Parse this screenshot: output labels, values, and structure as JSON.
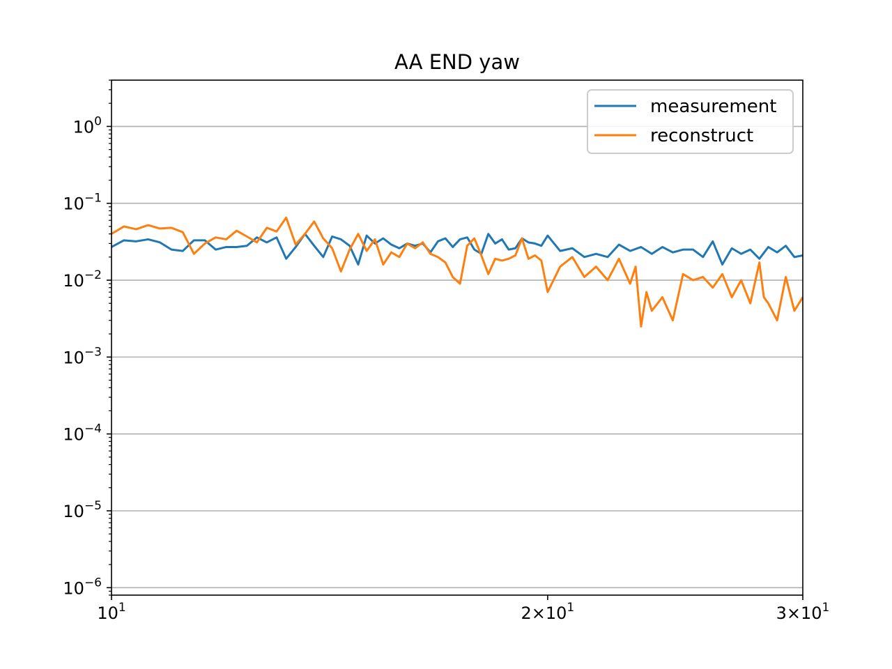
{
  "chart_data": {
    "type": "line",
    "title": "AA END yaw",
    "xlabel": "",
    "ylabel": "",
    "xscale": "log",
    "yscale": "log",
    "xlim": [
      10,
      30
    ],
    "ylim": [
      8e-07,
      4
    ],
    "grid": "y-major",
    "legend_position": "top-right",
    "x_ticks": [
      {
        "value": 10,
        "base": "10",
        "exp": "1",
        "coef": ""
      },
      {
        "value": 20,
        "base": "10",
        "exp": "1",
        "coef": "2×"
      },
      {
        "value": 30,
        "base": "10",
        "exp": "1",
        "coef": "3×"
      }
    ],
    "y_ticks": [
      {
        "value": 1,
        "base": "10",
        "exp": "0"
      },
      {
        "value": 0.1,
        "base": "10",
        "exp": "−1"
      },
      {
        "value": 0.01,
        "base": "10",
        "exp": "−2"
      },
      {
        "value": 0.001,
        "base": "10",
        "exp": "−3"
      },
      {
        "value": 0.0001,
        "base": "10",
        "exp": "−4"
      },
      {
        "value": 1e-05,
        "base": "10",
        "exp": "−5"
      },
      {
        "value": 1e-06,
        "base": "10",
        "exp": "−6"
      }
    ],
    "series": [
      {
        "name": "measurement",
        "color": "#1f77b4",
        "x": [
          10.0,
          10.2,
          10.4,
          10.6,
          10.8,
          11.0,
          11.2,
          11.4,
          11.6,
          11.8,
          12.0,
          12.2,
          12.4,
          12.6,
          12.8,
          13.0,
          13.2,
          13.4,
          13.6,
          13.8,
          14.0,
          14.2,
          14.4,
          14.6,
          14.8,
          15.0,
          15.2,
          15.4,
          15.6,
          15.8,
          16.0,
          16.2,
          16.4,
          16.6,
          16.8,
          17.0,
          17.2,
          17.4,
          17.6,
          17.8,
          18.0,
          18.2,
          18.4,
          18.6,
          18.8,
          19.0,
          19.2,
          19.4,
          19.6,
          19.8,
          20.0,
          20.4,
          20.8,
          21.2,
          21.6,
          22.0,
          22.4,
          22.8,
          23.2,
          23.6,
          24.0,
          24.4,
          24.8,
          25.2,
          25.6,
          26.0,
          26.4,
          26.8,
          27.2,
          27.6,
          28.0,
          28.4,
          28.8,
          29.2,
          29.6,
          30.0
        ],
        "y": [
          0.027,
          0.033,
          0.032,
          0.034,
          0.031,
          0.025,
          0.024,
          0.033,
          0.033,
          0.025,
          0.027,
          0.027,
          0.028,
          0.036,
          0.031,
          0.036,
          0.019,
          0.027,
          0.04,
          0.028,
          0.02,
          0.037,
          0.034,
          0.028,
          0.016,
          0.038,
          0.03,
          0.035,
          0.029,
          0.026,
          0.03,
          0.028,
          0.03,
          0.023,
          0.032,
          0.035,
          0.027,
          0.034,
          0.036,
          0.025,
          0.022,
          0.04,
          0.03,
          0.034,
          0.025,
          0.026,
          0.035,
          0.031,
          0.03,
          0.028,
          0.038,
          0.024,
          0.026,
          0.02,
          0.022,
          0.02,
          0.029,
          0.024,
          0.027,
          0.022,
          0.027,
          0.023,
          0.025,
          0.025,
          0.02,
          0.032,
          0.016,
          0.026,
          0.022,
          0.025,
          0.019,
          0.027,
          0.023,
          0.028,
          0.02,
          0.021
        ]
      },
      {
        "name": "reconstruct",
        "color": "#ff7f0e",
        "x": [
          10.0,
          10.2,
          10.4,
          10.6,
          10.8,
          11.0,
          11.2,
          11.4,
          11.6,
          11.8,
          12.0,
          12.2,
          12.4,
          12.6,
          12.8,
          13.0,
          13.2,
          13.4,
          13.6,
          13.8,
          14.0,
          14.2,
          14.4,
          14.6,
          14.8,
          15.0,
          15.2,
          15.4,
          15.6,
          15.8,
          16.0,
          16.2,
          16.4,
          16.6,
          16.8,
          17.0,
          17.2,
          17.4,
          17.6,
          17.8,
          18.0,
          18.2,
          18.4,
          18.6,
          18.8,
          19.0,
          19.2,
          19.4,
          19.6,
          19.8,
          20.0,
          20.4,
          20.8,
          21.2,
          21.6,
          22.0,
          22.4,
          22.8,
          23.0,
          23.2,
          23.4,
          23.6,
          24.0,
          24.4,
          24.8,
          25.2,
          25.6,
          26.0,
          26.4,
          26.8,
          27.2,
          27.6,
          28.0,
          28.2,
          28.4,
          28.8,
          29.2,
          29.6,
          30.0
        ],
        "y": [
          0.04,
          0.05,
          0.046,
          0.052,
          0.047,
          0.048,
          0.042,
          0.022,
          0.03,
          0.036,
          0.034,
          0.044,
          0.037,
          0.031,
          0.048,
          0.043,
          0.065,
          0.029,
          0.04,
          0.058,
          0.035,
          0.026,
          0.013,
          0.025,
          0.04,
          0.024,
          0.034,
          0.016,
          0.023,
          0.02,
          0.03,
          0.026,
          0.031,
          0.022,
          0.02,
          0.017,
          0.011,
          0.009,
          0.028,
          0.035,
          0.021,
          0.012,
          0.019,
          0.018,
          0.019,
          0.021,
          0.035,
          0.019,
          0.021,
          0.018,
          0.007,
          0.015,
          0.02,
          0.011,
          0.015,
          0.01,
          0.019,
          0.009,
          0.015,
          0.0025,
          0.007,
          0.004,
          0.006,
          0.003,
          0.012,
          0.01,
          0.011,
          0.008,
          0.012,
          0.006,
          0.01,
          0.005,
          0.017,
          0.006,
          0.005,
          0.003,
          0.011,
          0.004,
          0.006
        ]
      }
    ]
  }
}
